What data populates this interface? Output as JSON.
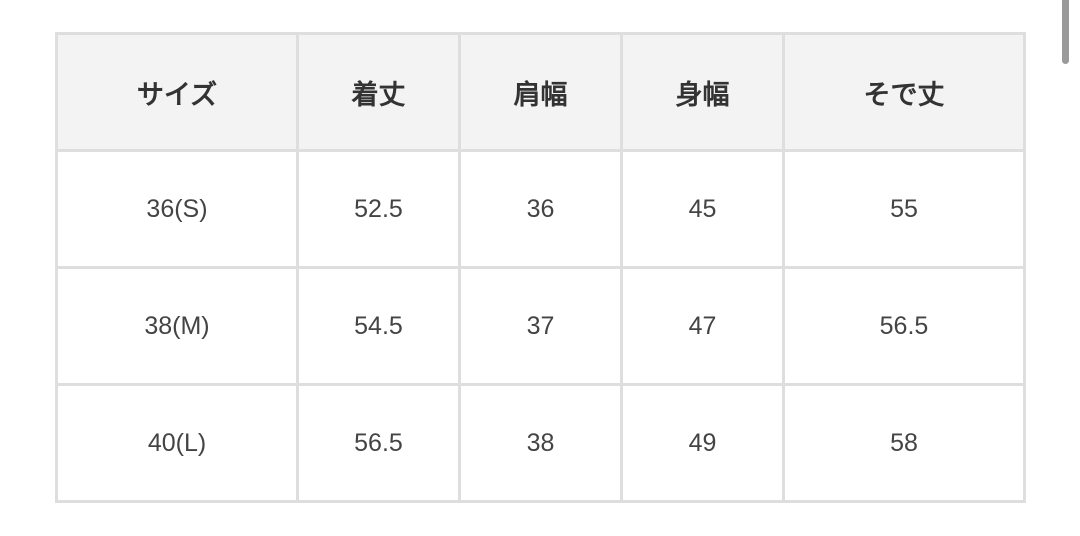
{
  "table": {
    "headers": [
      "サイズ",
      "着丈",
      "肩幅",
      "身幅",
      "そで丈"
    ],
    "rows": [
      [
        "36(S)",
        "52.5",
        "36",
        "45",
        "55"
      ],
      [
        "38(M)",
        "54.5",
        "37",
        "47",
        "56.5"
      ],
      [
        "40(L)",
        "56.5",
        "38",
        "49",
        "58"
      ]
    ]
  }
}
